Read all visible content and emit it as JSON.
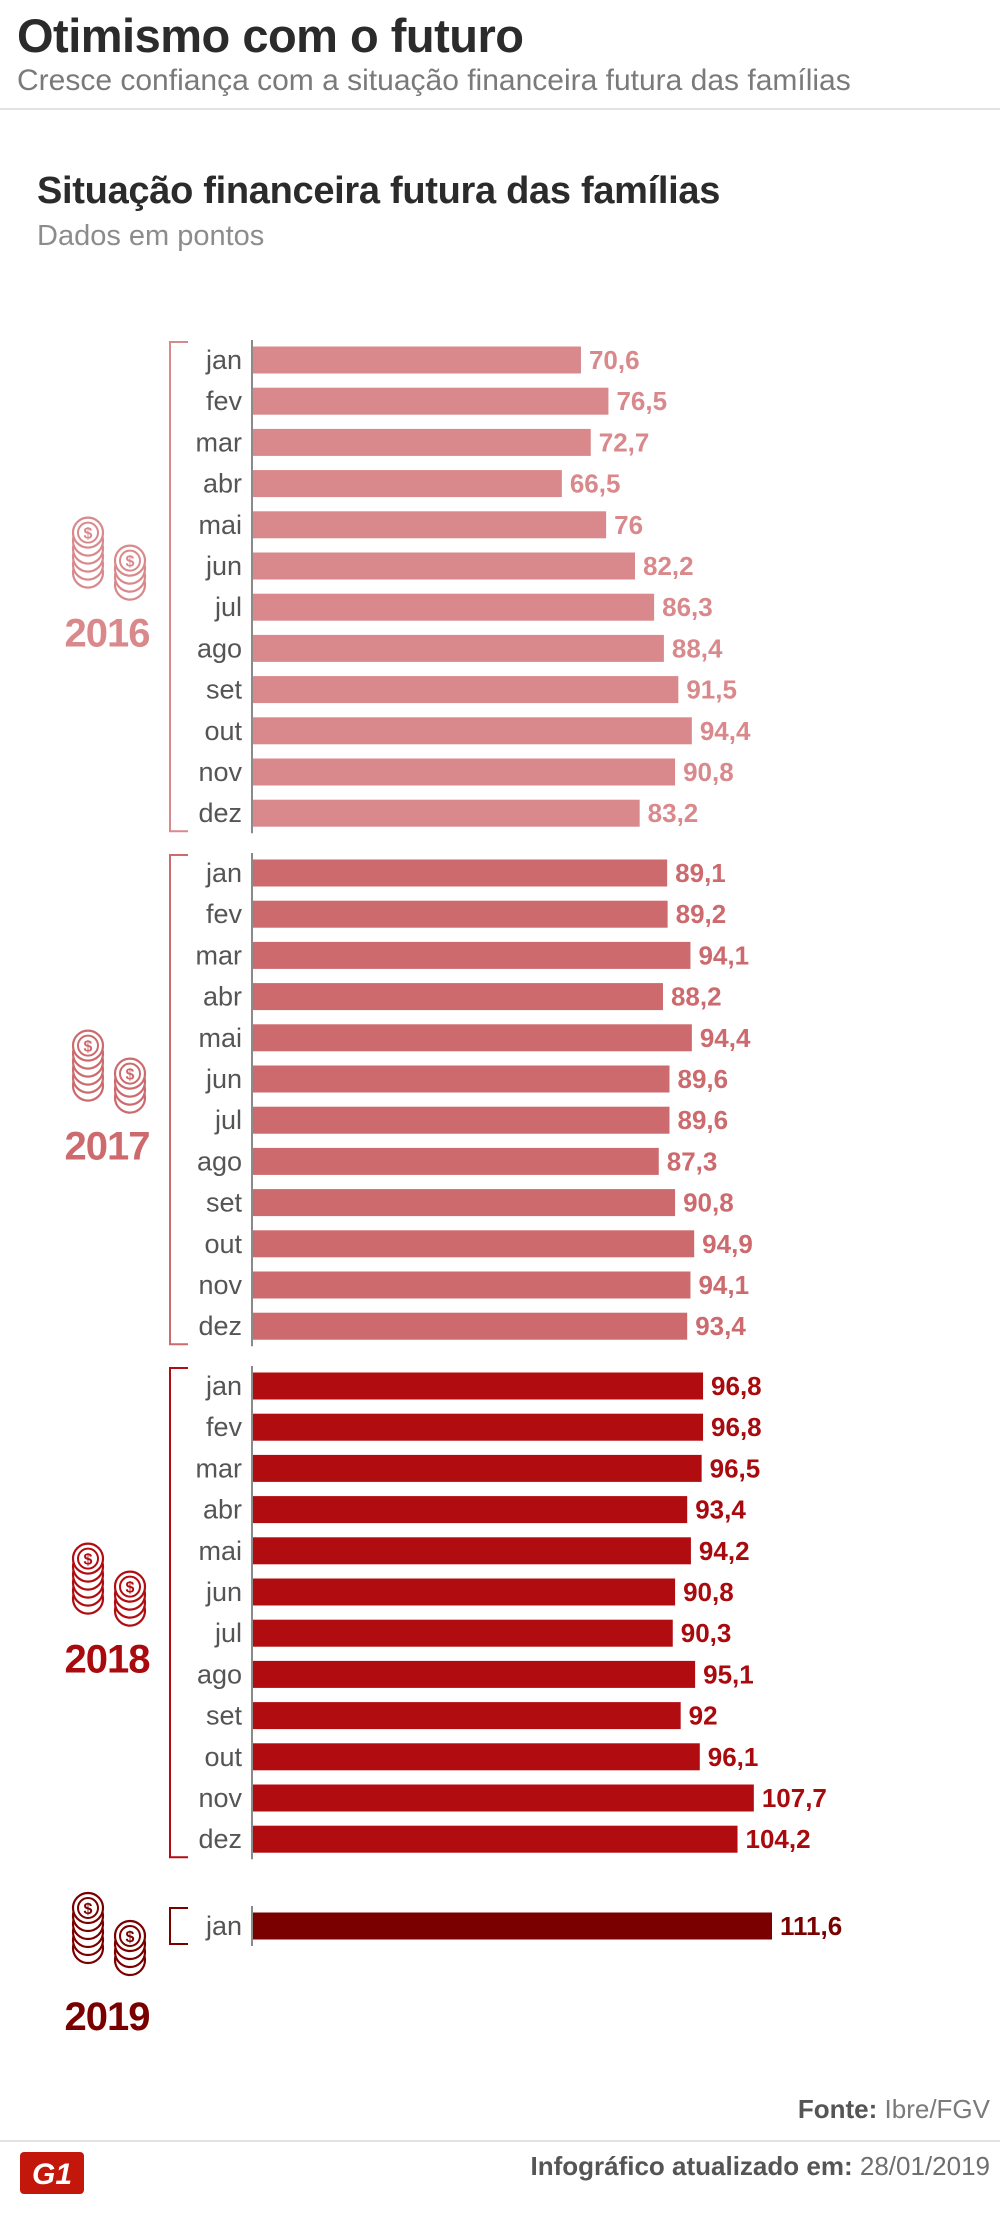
{
  "header": {
    "title": "Otimismo com o futuro",
    "subtitle": "Cresce confiança com a situação financeira futura das famílias"
  },
  "chart_data": {
    "type": "bar",
    "orientation": "horizontal",
    "title": "Situação financeira futura das famílias",
    "subtitle": "Dados em pontos",
    "xlabel": "",
    "ylabel": "",
    "xlim": [
      0,
      111.6
    ],
    "grid": false,
    "groups": [
      {
        "year": "2016",
        "color": "#d9898c",
        "label_color": "#d9898c",
        "categories": [
          "jan",
          "fev",
          "mar",
          "abr",
          "mai",
          "jun",
          "jul",
          "ago",
          "set",
          "out",
          "nov",
          "dez"
        ],
        "values": [
          70.6,
          76.5,
          72.7,
          66.5,
          76,
          82.2,
          86.3,
          88.4,
          91.5,
          94.4,
          90.8,
          83.2
        ],
        "labels": [
          "70,6",
          "76,5",
          "72,7",
          "66,5",
          "76",
          "82,2",
          "86,3",
          "88,4",
          "91,5",
          "94,4",
          "90,8",
          "83,2"
        ]
      },
      {
        "year": "2017",
        "color": "#cc6a6e",
        "label_color": "#cc6a6e",
        "categories": [
          "jan",
          "fev",
          "mar",
          "abr",
          "mai",
          "jun",
          "jul",
          "ago",
          "set",
          "out",
          "nov",
          "dez"
        ],
        "values": [
          89.1,
          89.2,
          94.1,
          88.2,
          94.4,
          89.6,
          89.6,
          87.3,
          90.8,
          94.9,
          94.1,
          93.4
        ],
        "labels": [
          "89,1",
          "89,2",
          "94,1",
          "88,2",
          "94,4",
          "89,6",
          "89,6",
          "87,3",
          "90,8",
          "94,9",
          "94,1",
          "93,4"
        ]
      },
      {
        "year": "2018",
        "color": "#b10c10",
        "label_color": "#a80a0e",
        "categories": [
          "jan",
          "fev",
          "mar",
          "abr",
          "mai",
          "jun",
          "jul",
          "ago",
          "set",
          "out",
          "nov",
          "dez"
        ],
        "values": [
          96.8,
          96.8,
          96.5,
          93.4,
          94.2,
          90.8,
          90.3,
          95.1,
          92,
          96.1,
          107.7,
          104.2
        ],
        "labels": [
          "96,8",
          "96,8",
          "96,5",
          "93,4",
          "94,2",
          "90,8",
          "90,3",
          "95,1",
          "92",
          "96,1",
          "107,7",
          "104,2"
        ]
      },
      {
        "year": "2019",
        "color": "#7a0000",
        "label_color": "#7a0000",
        "categories": [
          "jan"
        ],
        "values": [
          111.6
        ],
        "labels": [
          "111,6"
        ]
      }
    ]
  },
  "footer": {
    "source_label": "Fonte:",
    "source_value": "Ibre/FGV",
    "updated_label": "Infográfico atualizado em:",
    "updated_value": "28/01/2019",
    "logo_text": "G1",
    "logo_color": "#c4170c"
  }
}
